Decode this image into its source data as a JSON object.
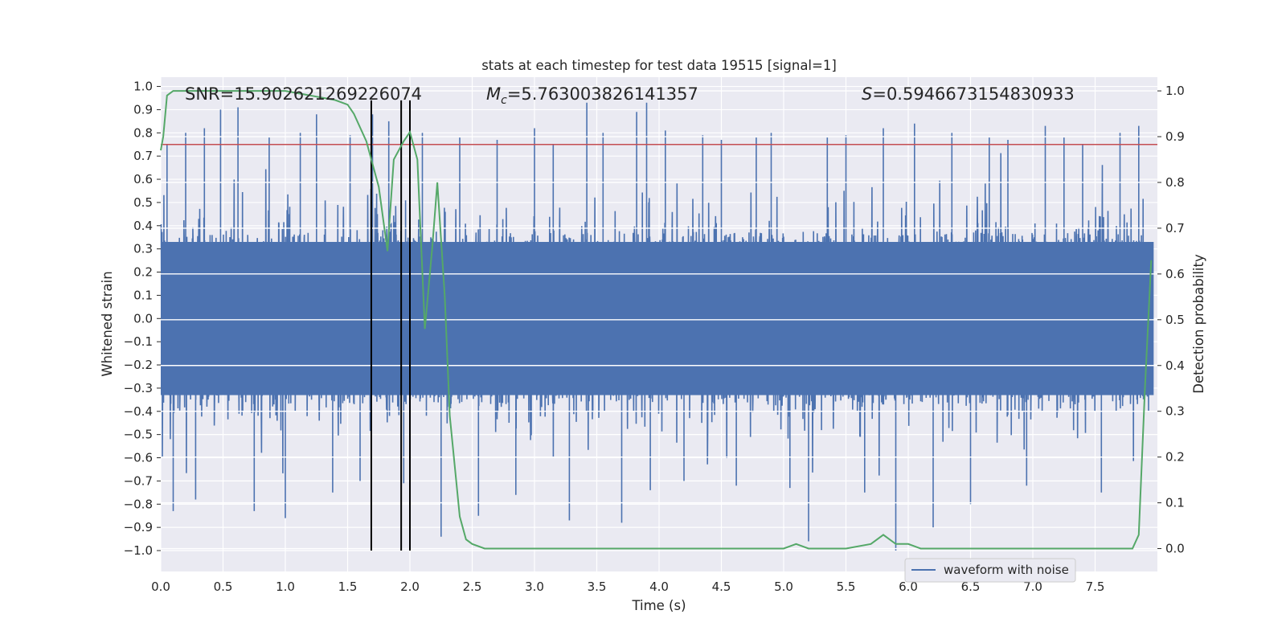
{
  "chart_data": {
    "type": "line",
    "title": "stats at each timestep for test data 19515 [signal=1]",
    "xlabel": "Time (s)",
    "ylabel_left": "Whitened strain",
    "ylabel_right": "Detection probability",
    "xlim": [
      0.0,
      8.0
    ],
    "ylim_left": [
      -1.09,
      1.04
    ],
    "ylim_right": [
      -0.05,
      1.03
    ],
    "grid": true,
    "legend_placement": "lower-right",
    "x_ticks": [
      "0.0",
      "0.5",
      "1.0",
      "1.5",
      "2.0",
      "2.5",
      "3.0",
      "3.5",
      "4.0",
      "4.5",
      "5.0",
      "5.5",
      "6.0",
      "6.5",
      "7.0",
      "7.5"
    ],
    "y_left_ticks": [
      "1.0",
      "0.9",
      "0.8",
      "0.7",
      "0.6",
      "0.5",
      "0.4",
      "0.3",
      "0.2",
      "0.1",
      "0.0",
      "−0.1",
      "−0.2",
      "−0.3",
      "−0.4",
      "−0.5",
      "−0.6",
      "−0.7",
      "−0.8",
      "−0.9",
      "−1.0"
    ],
    "y_right_ticks": [
      "1.0",
      "0.9",
      "0.8",
      "0.7",
      "0.6",
      "0.5",
      "0.4",
      "0.3",
      "0.2",
      "0.1",
      "0.0"
    ],
    "annotations": {
      "snr": "SNR=15.902621269226074",
      "mc": "=5.763003826141357",
      "s": "=0.5946673154830933"
    },
    "series": [
      {
        "name": "waveform with noise",
        "axis": "left",
        "color": "#4c72b0",
        "style": "noise",
        "typical_amplitude": 0.55,
        "peak_times": [
          0.05,
          0.1,
          0.2,
          0.28,
          0.35,
          0.48,
          0.62,
          0.75,
          0.87,
          1.0,
          1.12,
          1.25,
          1.38,
          1.52,
          1.6,
          1.7,
          1.83,
          1.95,
          2.1,
          2.25,
          2.4,
          2.55,
          2.7,
          2.85,
          3.0,
          3.15,
          3.28,
          3.42,
          3.55,
          3.7,
          3.82,
          3.9,
          3.93,
          4.05,
          4.2,
          4.35,
          4.5,
          4.62,
          4.78,
          4.9,
          5.05,
          5.2,
          5.35,
          5.5,
          5.65,
          5.8,
          5.9,
          6.05,
          6.2,
          6.35,
          6.5,
          6.65,
          6.8,
          6.95,
          7.1,
          7.25,
          7.4,
          7.55,
          7.7,
          7.85
        ],
        "peak_values": [
          0.75,
          -0.83,
          0.8,
          -0.78,
          0.82,
          0.9,
          0.91,
          -0.83,
          0.78,
          -0.86,
          0.8,
          0.88,
          -0.75,
          0.79,
          -0.7,
          0.88,
          0.85,
          -0.71,
          0.8,
          -0.94,
          0.78,
          -0.85,
          0.77,
          -0.76,
          0.82,
          0.75,
          -0.87,
          0.93,
          0.8,
          -0.88,
          0.89,
          0.93,
          -0.74,
          0.81,
          -0.7,
          0.79,
          0.77,
          -0.72,
          0.78,
          0.8,
          -0.73,
          -0.96,
          0.78,
          0.79,
          -0.75,
          0.82,
          -1.0,
          0.84,
          -0.9,
          0.8,
          -0.8,
          0.78,
          0.77,
          -0.72,
          0.83,
          0.78,
          0.75,
          -0.75,
          0.8,
          0.83
        ]
      },
      {
        "name": "",
        "axis": "right",
        "color": "#55a868",
        "x": [
          0.0,
          0.02,
          0.05,
          0.1,
          0.2,
          0.4,
          0.6,
          0.8,
          1.0,
          1.2,
          1.4,
          1.5,
          1.55,
          1.65,
          1.75,
          1.82,
          1.87,
          1.95,
          2.0,
          2.06,
          2.12,
          2.18,
          2.22,
          2.28,
          2.32,
          2.4,
          2.45,
          2.5,
          2.6,
          3.0,
          3.2,
          3.5,
          3.7,
          3.8,
          3.9,
          4.2,
          4.5,
          4.8,
          5.0,
          5.1,
          5.2,
          5.5,
          5.7,
          5.8,
          5.9,
          6.0,
          6.1,
          6.2,
          6.5,
          6.8,
          7.0,
          7.2,
          7.5,
          7.8,
          7.85,
          7.9,
          7.95
        ],
        "y": [
          0.87,
          0.9,
          0.99,
          1.0,
          1.0,
          1.0,
          1.0,
          1.0,
          1.0,
          0.99,
          0.98,
          0.97,
          0.95,
          0.89,
          0.79,
          0.65,
          0.85,
          0.89,
          0.91,
          0.85,
          0.48,
          0.66,
          0.8,
          0.55,
          0.29,
          0.07,
          0.02,
          0.01,
          0.0,
          0.0,
          0.0,
          0.0,
          0.0,
          0.0,
          0.0,
          0.0,
          0.0,
          0.0,
          0.0,
          0.01,
          0.0,
          0.0,
          0.01,
          0.03,
          0.01,
          0.01,
          0.0,
          0.0,
          0.0,
          0.0,
          0.0,
          0.0,
          0.0,
          0.0,
          0.03,
          0.35,
          0.63
        ]
      },
      {
        "name": "",
        "axis": "left",
        "color": "#c44e52",
        "style": "hline",
        "value": 0.75
      },
      {
        "name": "",
        "axis": "left",
        "color": "#000000",
        "style": "vlines",
        "x": [
          1.69,
          1.93,
          2.0
        ]
      }
    ]
  }
}
